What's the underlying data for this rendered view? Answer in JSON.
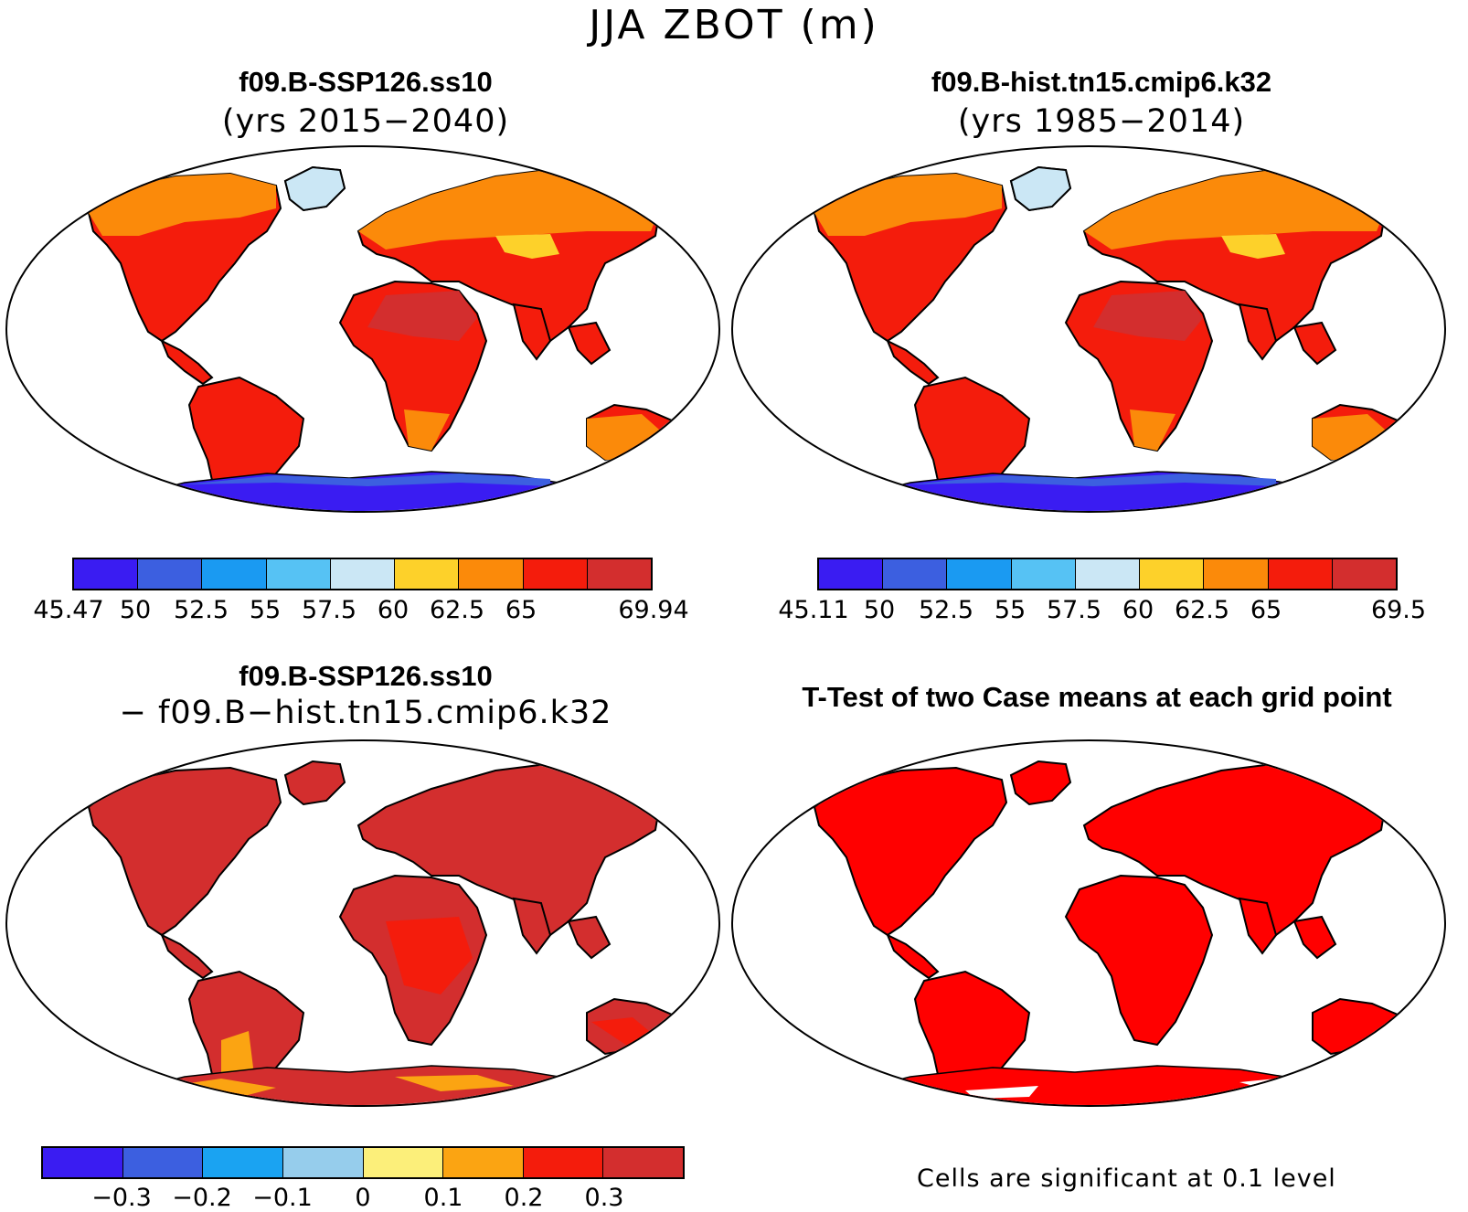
{
  "title": "JJA ZBOT (m)",
  "panels": [
    {
      "id": "top-left",
      "title": "f09.B-SSP126.ss10",
      "subtitle": "(yrs 2015−2040)",
      "colorbar": {
        "colors": [
          "#3a1cf2",
          "#3c5fe0",
          "#1a9af2",
          "#56c2f4",
          "#cbe7f5",
          "#fdd12a",
          "#fb8a0a",
          "#f41c0c",
          "#d32e2e"
        ],
        "tick_labels": [
          "45.47",
          "50",
          "52.5",
          "55",
          "57.5",
          "60",
          "62.5",
          "65",
          "69.94"
        ]
      }
    },
    {
      "id": "top-right",
      "title": "f09.B-hist.tn15.cmip6.k32",
      "subtitle": "(yrs 1985−2014)",
      "colorbar": {
        "colors": [
          "#3a1cf2",
          "#3c5fe0",
          "#1a9af2",
          "#56c2f4",
          "#cbe7f5",
          "#fdd12a",
          "#fb8a0a",
          "#f41c0c",
          "#d32e2e"
        ],
        "tick_labels": [
          "45.11",
          "50",
          "52.5",
          "55",
          "57.5",
          "60",
          "62.5",
          "65",
          "69.5"
        ]
      }
    },
    {
      "id": "bottom-left",
      "title": "f09.B-SSP126.ss10",
      "subtitle": "− f09.B−hist.tn15.cmip6.k32",
      "colorbar": {
        "colors": [
          "#3a1cf2",
          "#3c5fe0",
          "#1aa3f2",
          "#96cdec",
          "#fcef7a",
          "#fba412",
          "#f41c0c",
          "#d32e2e"
        ],
        "tick_labels": [
          "−0.3",
          "−0.2",
          "−0.1",
          "0",
          "0.1",
          "0.2",
          "0.3"
        ]
      }
    },
    {
      "id": "bottom-right",
      "title": "T-Test of two Case means at each grid point",
      "note": "Cells are significant at 0.1 level"
    }
  ],
  "map_fill": {
    "land_hot": "#d32e2e",
    "land_red": "#f41c0c",
    "land_orange": "#fb8a0a",
    "land_yellow": "#fdd12a",
    "ice_light": "#cbe7f5",
    "antarctic": "#3a1cf2",
    "antarctic_edge": "#3c5fe0"
  }
}
